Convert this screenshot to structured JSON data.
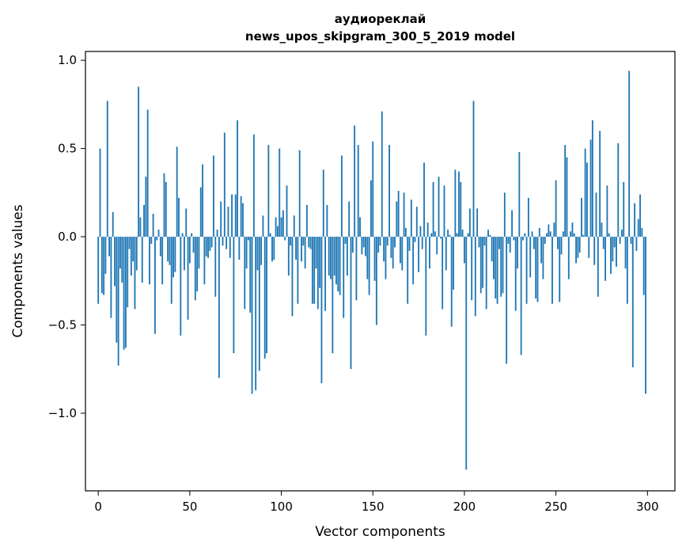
{
  "chart_data": {
    "type": "bar",
    "title_line1": "аудиореклай",
    "title_line2": "news_upos_skipgram_300_5_2019 model",
    "xlabel": "Vector components",
    "ylabel": "Components values",
    "xlim": [
      -7,
      315
    ],
    "ylim": [
      -1.44,
      1.05
    ],
    "x_ticks": [
      {
        "value": 0,
        "label": "0"
      },
      {
        "value": 50,
        "label": "50"
      },
      {
        "value": 100,
        "label": "100"
      },
      {
        "value": 150,
        "label": "150"
      },
      {
        "value": 200,
        "label": "200"
      },
      {
        "value": 250,
        "label": "250"
      },
      {
        "value": 300,
        "label": "300"
      }
    ],
    "y_ticks": [
      {
        "value": 1.0,
        "label": "1.0"
      },
      {
        "value": 0.5,
        "label": "0.5"
      },
      {
        "value": 0.0,
        "label": "0.0"
      },
      {
        "value": -0.5,
        "label": "−0.5"
      },
      {
        "value": -1.0,
        "label": "−1.0"
      }
    ],
    "bar_color": "#1f77b4",
    "values": [
      -0.38,
      0.5,
      -0.32,
      -0.33,
      -0.21,
      0.77,
      -0.11,
      -0.46,
      0.14,
      -0.28,
      -0.6,
      -0.73,
      -0.18,
      -0.26,
      -0.64,
      -0.63,
      -0.4,
      -0.07,
      -0.22,
      -0.14,
      -0.41,
      -0.19,
      0.85,
      0.11,
      -0.26,
      0.18,
      0.34,
      0.72,
      -0.27,
      -0.04,
      0.13,
      -0.55,
      -0.02,
      0.04,
      -0.11,
      -0.27,
      0.36,
      0.31,
      -0.14,
      -0.16,
      -0.38,
      -0.23,
      -0.2,
      0.51,
      0.22,
      -0.56,
      0.02,
      -0.19,
      0.16,
      -0.47,
      -0.15,
      0.02,
      -0.09,
      -0.36,
      -0.31,
      -0.18,
      0.28,
      0.41,
      -0.27,
      -0.11,
      -0.12,
      -0.08,
      -0.06,
      0.46,
      -0.34,
      0.04,
      -0.8,
      0.2,
      -0.05,
      0.59,
      -0.07,
      0.17,
      -0.12,
      0.24,
      -0.66,
      0.24,
      0.66,
      -0.13,
      0.23,
      0.19,
      -0.41,
      -0.18,
      -0.02,
      -0.43,
      -0.89,
      0.58,
      -0.87,
      -0.19,
      -0.76,
      -0.16,
      0.12,
      -0.69,
      -0.66,
      0.52,
      0.02,
      -0.14,
      -0.13,
      0.11,
      0.06,
      0.5,
      0.11,
      0.15,
      -0.02,
      0.29,
      -0.22,
      -0.05,
      -0.45,
      0.12,
      -0.13,
      -0.38,
      0.49,
      -0.14,
      -0.05,
      -0.18,
      0.18,
      -0.06,
      -0.07,
      -0.38,
      -0.38,
      -0.18,
      -0.41,
      -0.29,
      -0.83,
      0.38,
      -0.42,
      0.18,
      -0.22,
      -0.24,
      -0.66,
      -0.22,
      -0.27,
      -0.31,
      -0.33,
      0.46,
      -0.46,
      -0.04,
      -0.22,
      0.2,
      -0.75,
      -0.09,
      0.63,
      -0.36,
      0.52,
      0.11,
      -0.1,
      -0.06,
      -0.11,
      -0.24,
      -0.33,
      0.32,
      0.54,
      -0.25,
      -0.5,
      -0.09,
      -0.05,
      0.71,
      -0.14,
      -0.24,
      -0.05,
      0.52,
      -0.12,
      -0.18,
      -0.06,
      0.2,
      0.26,
      -0.15,
      -0.19,
      0.25,
      0.05,
      -0.38,
      -0.08,
      0.21,
      -0.27,
      -0.03,
      0.17,
      -0.2,
      0.06,
      -0.07,
      0.42,
      -0.56,
      0.08,
      -0.18,
      0.02,
      0.31,
      0.03,
      -0.1,
      0.34,
      -0.01,
      -0.41,
      0.29,
      -0.19,
      0.04,
      0.01,
      -0.51,
      -0.3,
      0.38,
      0.02,
      0.37,
      0.31,
      0.04,
      -0.15,
      -1.32,
      0.02,
      0.16,
      -0.36,
      0.77,
      -0.45,
      0.16,
      -0.06,
      -0.32,
      -0.29,
      -0.05,
      -0.41,
      0.04,
      0.01,
      -0.14,
      -0.24,
      -0.35,
      -0.38,
      -0.07,
      -0.34,
      -0.32,
      0.25,
      -0.72,
      -0.04,
      -0.09,
      0.15,
      -0.02,
      -0.42,
      -0.18,
      0.48,
      -0.67,
      -0.02,
      0.02,
      -0.38,
      0.22,
      -0.23,
      0.03,
      -0.07,
      -0.35,
      -0.37,
      0.05,
      -0.15,
      -0.24,
      -0.04,
      0.02,
      0.07,
      0.03,
      -0.38,
      0.08,
      0.32,
      -0.07,
      -0.37,
      -0.1,
      0.03,
      0.52,
      0.45,
      -0.24,
      0.03,
      0.08,
      0.02,
      -0.15,
      -0.12,
      -0.09,
      0.22,
      0.01,
      0.5,
      0.42,
      -0.12,
      0.55,
      0.66,
      -0.16,
      0.25,
      -0.34,
      0.6,
      0.08,
      -0.07,
      -0.25,
      0.29,
      0.02,
      -0.21,
      -0.14,
      -0.06,
      -0.17,
      0.53,
      -0.04,
      0.04,
      0.31,
      -0.18,
      -0.38,
      0.94,
      -0.04,
      -0.74,
      0.19,
      -0.08,
      0.1,
      0.24,
      0.05,
      -0.33,
      -0.89
    ]
  }
}
